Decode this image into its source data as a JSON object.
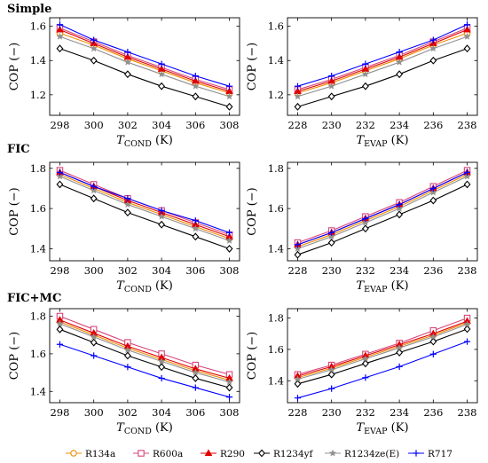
{
  "chart_data": [
    {
      "type": "line",
      "section_title": "Simple",
      "xlabel_base": "T",
      "xlabel_sub": "COND",
      "xlabel_unit": "(K)",
      "ylabel": "COP (−)",
      "xlim": [
        297.4,
        308.6
      ],
      "ylim": [
        1.08,
        1.65
      ],
      "xticks": [
        298,
        300,
        302,
        304,
        306,
        308
      ],
      "yticks": [
        1.2,
        1.4,
        1.6
      ],
      "x": [
        298,
        300,
        302,
        304,
        306,
        308
      ],
      "series": [
        {
          "name": "R134a",
          "values": [
            1.56,
            1.49,
            1.41,
            1.34,
            1.27,
            1.21
          ]
        },
        {
          "name": "R600a",
          "values": [
            1.59,
            1.51,
            1.43,
            1.36,
            1.29,
            1.23
          ]
        },
        {
          "name": "R290",
          "values": [
            1.58,
            1.5,
            1.42,
            1.35,
            1.28,
            1.22
          ]
        },
        {
          "name": "R1234yf",
          "values": [
            1.47,
            1.4,
            1.32,
            1.25,
            1.19,
            1.13
          ]
        },
        {
          "name": "R1234ze(E)",
          "values": [
            1.54,
            1.47,
            1.39,
            1.32,
            1.25,
            1.19
          ]
        },
        {
          "name": "R717",
          "values": [
            1.61,
            1.52,
            1.45,
            1.38,
            1.31,
            1.25
          ]
        }
      ]
    },
    {
      "type": "line",
      "section_title": "",
      "xlabel_base": "T",
      "xlabel_sub": "EVAP",
      "xlabel_unit": "(K)",
      "ylabel": "COP (−)",
      "xlim": [
        227.4,
        238.6
      ],
      "ylim": [
        1.08,
        1.65
      ],
      "xticks": [
        228,
        230,
        232,
        234,
        236,
        238
      ],
      "yticks": [
        1.2,
        1.4,
        1.6
      ],
      "x": [
        228,
        230,
        232,
        234,
        236,
        238
      ],
      "series": [
        {
          "name": "R134a",
          "values": [
            1.21,
            1.27,
            1.34,
            1.41,
            1.49,
            1.56
          ]
        },
        {
          "name": "R600a",
          "values": [
            1.23,
            1.29,
            1.36,
            1.43,
            1.51,
            1.59
          ]
        },
        {
          "name": "R290",
          "values": [
            1.22,
            1.28,
            1.35,
            1.42,
            1.5,
            1.58
          ]
        },
        {
          "name": "R1234yf",
          "values": [
            1.13,
            1.19,
            1.25,
            1.32,
            1.4,
            1.47
          ]
        },
        {
          "name": "R1234ze(E)",
          "values": [
            1.19,
            1.25,
            1.32,
            1.39,
            1.47,
            1.54
          ]
        },
        {
          "name": "R717",
          "values": [
            1.25,
            1.31,
            1.38,
            1.45,
            1.52,
            1.61
          ]
        }
      ]
    },
    {
      "type": "line",
      "section_title": "FIC",
      "xlabel_base": "T",
      "xlabel_sub": "COND",
      "xlabel_unit": "(K)",
      "ylabel": "COP (−)",
      "xlim": [
        297.4,
        308.6
      ],
      "ylim": [
        1.34,
        1.83
      ],
      "xticks": [
        298,
        300,
        302,
        304,
        306,
        308
      ],
      "yticks": [
        1.4,
        1.6,
        1.8
      ],
      "x": [
        298,
        300,
        302,
        304,
        306,
        308
      ],
      "series": [
        {
          "name": "R134a",
          "values": [
            1.77,
            1.7,
            1.63,
            1.57,
            1.51,
            1.45
          ]
        },
        {
          "name": "R600a",
          "values": [
            1.79,
            1.72,
            1.65,
            1.59,
            1.53,
            1.47
          ]
        },
        {
          "name": "R290",
          "values": [
            1.78,
            1.71,
            1.64,
            1.58,
            1.52,
            1.46
          ]
        },
        {
          "name": "R1234yf",
          "values": [
            1.72,
            1.65,
            1.58,
            1.52,
            1.46,
            1.4
          ]
        },
        {
          "name": "R1234ze(E)",
          "values": [
            1.76,
            1.69,
            1.62,
            1.56,
            1.5,
            1.44
          ]
        },
        {
          "name": "R717",
          "values": [
            1.78,
            1.71,
            1.65,
            1.59,
            1.54,
            1.48
          ]
        }
      ]
    },
    {
      "type": "line",
      "section_title": "",
      "xlabel_base": "T",
      "xlabel_sub": "EVAP",
      "xlabel_unit": "(K)",
      "ylabel": "COP (−)",
      "xlim": [
        227.4,
        238.6
      ],
      "ylim": [
        1.34,
        1.83
      ],
      "xticks": [
        228,
        230,
        232,
        234,
        236,
        238
      ],
      "yticks": [
        1.4,
        1.6,
        1.8
      ],
      "x": [
        228,
        230,
        232,
        234,
        236,
        238
      ],
      "series": [
        {
          "name": "R134a",
          "values": [
            1.41,
            1.47,
            1.54,
            1.61,
            1.69,
            1.77
          ]
        },
        {
          "name": "R600a",
          "values": [
            1.43,
            1.49,
            1.56,
            1.63,
            1.71,
            1.79
          ]
        },
        {
          "name": "R290",
          "values": [
            1.42,
            1.48,
            1.55,
            1.62,
            1.7,
            1.78
          ]
        },
        {
          "name": "R1234yf",
          "values": [
            1.37,
            1.43,
            1.5,
            1.57,
            1.64,
            1.72
          ]
        },
        {
          "name": "R1234ze(E)",
          "values": [
            1.4,
            1.46,
            1.53,
            1.6,
            1.68,
            1.76
          ]
        },
        {
          "name": "R717",
          "values": [
            1.42,
            1.48,
            1.55,
            1.62,
            1.7,
            1.78
          ]
        }
      ]
    },
    {
      "type": "line",
      "section_title": "FIC+MC",
      "xlabel_base": "T",
      "xlabel_sub": "COND",
      "xlabel_unit": "(K)",
      "ylabel": "COP (−)",
      "xlim": [
        297.4,
        308.6
      ],
      "ylim": [
        1.34,
        1.84
      ],
      "xticks": [
        298,
        300,
        302,
        304,
        306,
        308
      ],
      "yticks": [
        1.4,
        1.6,
        1.8
      ],
      "x": [
        298,
        300,
        302,
        304,
        306,
        308
      ],
      "series": [
        {
          "name": "R134a",
          "values": [
            1.77,
            1.7,
            1.63,
            1.57,
            1.51,
            1.46
          ]
        },
        {
          "name": "R600a",
          "values": [
            1.8,
            1.73,
            1.66,
            1.6,
            1.54,
            1.49
          ]
        },
        {
          "name": "R290",
          "values": [
            1.78,
            1.71,
            1.64,
            1.58,
            1.52,
            1.47
          ]
        },
        {
          "name": "R1234yf",
          "values": [
            1.73,
            1.66,
            1.59,
            1.53,
            1.47,
            1.42
          ]
        },
        {
          "name": "R1234ze(E)",
          "values": [
            1.76,
            1.69,
            1.62,
            1.56,
            1.5,
            1.45
          ]
        },
        {
          "name": "R717",
          "values": [
            1.65,
            1.59,
            1.53,
            1.47,
            1.42,
            1.37
          ]
        }
      ]
    },
    {
      "type": "line",
      "section_title": "",
      "xlabel_base": "T",
      "xlabel_sub": "EVAP",
      "xlabel_unit": "(K)",
      "ylabel": "COP (−)",
      "xlim": [
        227.4,
        238.6
      ],
      "ylim": [
        1.26,
        1.86
      ],
      "xticks": [
        228,
        230,
        232,
        234,
        236,
        238
      ],
      "yticks": [
        1.4,
        1.6,
        1.8
      ],
      "x": [
        228,
        230,
        232,
        234,
        236,
        238
      ],
      "series": [
        {
          "name": "R134a",
          "values": [
            1.42,
            1.48,
            1.55,
            1.62,
            1.69,
            1.77
          ]
        },
        {
          "name": "R600a",
          "values": [
            1.44,
            1.5,
            1.57,
            1.64,
            1.72,
            1.8
          ]
        },
        {
          "name": "R290",
          "values": [
            1.43,
            1.49,
            1.56,
            1.63,
            1.7,
            1.78
          ]
        },
        {
          "name": "R1234yf",
          "values": [
            1.38,
            1.44,
            1.51,
            1.58,
            1.65,
            1.73
          ]
        },
        {
          "name": "R1234ze(E)",
          "values": [
            1.41,
            1.47,
            1.54,
            1.61,
            1.68,
            1.76
          ]
        },
        {
          "name": "R717",
          "values": [
            1.29,
            1.35,
            1.42,
            1.49,
            1.57,
            1.65
          ]
        }
      ]
    }
  ],
  "legend": {
    "placement": "bottom",
    "items": [
      {
        "name": "R134a",
        "color": "#f08c00",
        "marker": "circle-open"
      },
      {
        "name": "R600a",
        "color": "#d6457c",
        "marker": "square-open"
      },
      {
        "name": "R290",
        "color": "#e00000",
        "marker": "triangle-filled"
      },
      {
        "name": "R1234yf",
        "color": "#000000",
        "marker": "diamond-open"
      },
      {
        "name": "R1234ze(E)",
        "color": "#909090",
        "marker": "star"
      },
      {
        "name": "R717",
        "color": "#0000ff",
        "marker": "plus"
      }
    ]
  }
}
